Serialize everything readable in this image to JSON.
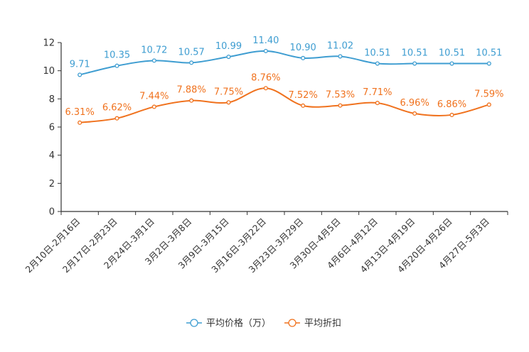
{
  "chart_data": {
    "type": "line",
    "title": "",
    "xlabel": "",
    "ylabel": "",
    "ylim": [
      0,
      12
    ],
    "yticks": [
      0,
      2,
      4,
      6,
      8,
      10,
      12
    ],
    "categories": [
      "2月10日-2月16日",
      "2月17日-2月23日",
      "2月24日-3月1日",
      "3月2日-3月8日",
      "3月9日-3月15日",
      "3月16日-3月22日",
      "3月23日-3月29日",
      "3月30日-4月5日",
      "4月6日-4月12日",
      "4月13日-4月19日",
      "4月20日-4月26日",
      "4月27日-5月3日"
    ],
    "series": [
      {
        "name": "平均价格（万）",
        "color": "#3e9dd1",
        "values": [
          9.71,
          10.35,
          10.72,
          10.57,
          10.99,
          11.4,
          10.9,
          11.02,
          10.51,
          10.51,
          10.51,
          10.51
        ],
        "labels": [
          "9.71",
          "10.35",
          "10.72",
          "10.57",
          "10.99",
          "11.40",
          "10.90",
          "11.02",
          "10.51",
          "10.51",
          "10.51",
          "10.51"
        ]
      },
      {
        "name": "平均折扣",
        "color": "#f0721e",
        "values": [
          6.31,
          6.62,
          7.44,
          7.88,
          7.75,
          8.76,
          7.52,
          7.53,
          7.71,
          6.96,
          6.86,
          7.59
        ],
        "labels": [
          "6.31%",
          "6.62%",
          "7.44%",
          "7.88%",
          "7.75%",
          "8.76%",
          "7.52%",
          "7.53%",
          "7.71%",
          "6.96%",
          "6.86%",
          "7.59%"
        ]
      }
    ],
    "legend_position": "bottom-center"
  }
}
